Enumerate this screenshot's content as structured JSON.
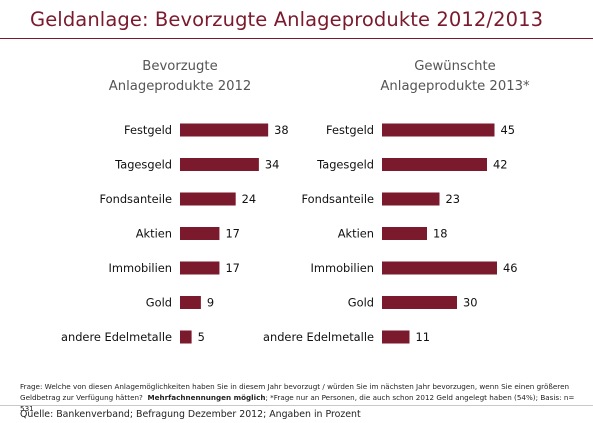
{
  "title": "Geldanlage: Bevorzugte Anlageprodukte 2012/2013",
  "colors": {
    "bar": "#7a1a2c",
    "title": "#7a1a2c"
  },
  "chart_data": [
    {
      "type": "bar",
      "orientation": "horizontal",
      "title_line1": "Bevorzugte",
      "title_line2": "Anlageprodukte 2012",
      "categories": [
        "Festgeld",
        "Tagesgeld",
        "Fondsanteile",
        "Aktien",
        "Immobilien",
        "Gold",
        "andere Edelmetalle"
      ],
      "values": [
        38,
        34,
        24,
        17,
        17,
        9,
        5
      ],
      "value_labels": [
        "38",
        "34",
        "24",
        "17",
        "17",
        "9",
        "5"
      ]
    },
    {
      "type": "bar",
      "orientation": "horizontal",
      "title_line1": "Gewünschte",
      "title_line2": "Anlageprodukte 2013*",
      "categories": [
        "Festgeld",
        "Tagesgeld",
        "Fondsanteile",
        "Aktien",
        "Immobilien",
        "Gold",
        "andere Edelmetalle"
      ],
      "values": [
        45,
        42,
        23,
        18,
        46,
        30,
        11
      ],
      "value_labels": [
        "45",
        "42",
        "23",
        "18",
        "46",
        "30",
        "11"
      ]
    }
  ],
  "footnote": {
    "line1": "Frage: Welche von diesen Anlagemöglichkeiten haben Sie in diesem Jahr bevorzugt / würden Sie im nächsten Jahr bevorzugen, wenn Sie einen größeren",
    "line2_a": "Geldbetrag zur Verfügung hätten?",
    "line2_bold": "Mehrfachnennungen möglich",
    "line2_b": "; *Frage nur an Personen, die auch schon 2012 Geld angelegt haben (54%); Basis: n= 531"
  },
  "source": "Quelle: Bankenverband; Befragung Dezember 2012; Angaben in Prozent"
}
